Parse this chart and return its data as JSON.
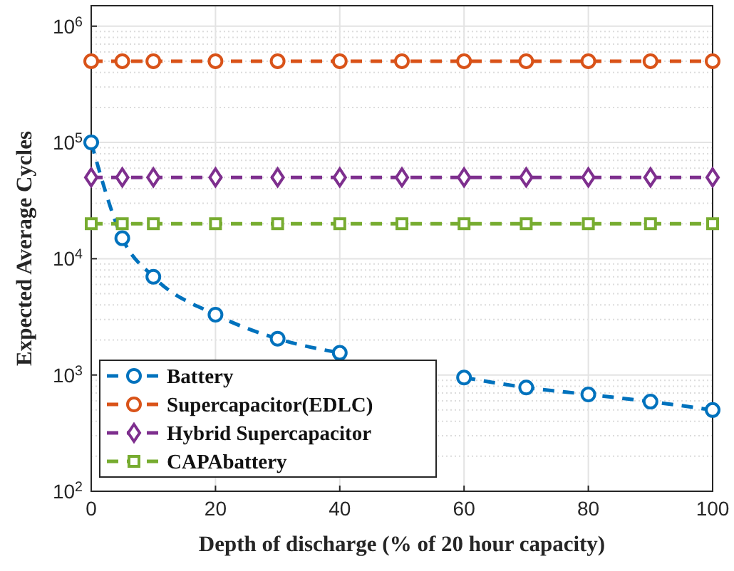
{
  "chart_data": {
    "type": "line",
    "xlabel": "Depth of discharge (% of 20 hour capacity)",
    "ylabel": "Expected Average Cycles",
    "x": [
      0,
      5,
      10,
      20,
      30,
      40,
      50,
      60,
      70,
      80,
      90,
      100
    ],
    "series": [
      {
        "name": "Battery",
        "color": "#0072bd",
        "marker": "circle",
        "values": [
          100000,
          15000,
          7000,
          3300,
          2050,
          1550,
          null,
          950,
          780,
          680,
          590,
          500
        ]
      },
      {
        "name": "Supercapacitor(EDLC)",
        "color": "#d95319",
        "marker": "circle",
        "values": [
          500000,
          500000,
          500000,
          500000,
          500000,
          500000,
          500000,
          500000,
          500000,
          500000,
          500000,
          500000
        ]
      },
      {
        "name": "Hybrid Supercapacitor",
        "color": "#7e2f8e",
        "marker": "diamond",
        "values": [
          50000,
          50000,
          50000,
          50000,
          50000,
          50000,
          50000,
          50000,
          50000,
          50000,
          50000,
          50000
        ]
      },
      {
        "name": "CAPAbattery",
        "color": "#77ac30",
        "marker": "square",
        "values": [
          20000,
          20000,
          20000,
          20000,
          20000,
          20000,
          20000,
          20000,
          20000,
          20000,
          20000,
          20000
        ]
      }
    ],
    "xlim": [
      0,
      100
    ],
    "xticks": [
      0,
      20,
      40,
      60,
      80,
      100
    ],
    "ylim": [
      100,
      1500000
    ],
    "yticks": [
      {
        "value": 100,
        "label": "10$^{2}$"
      },
      {
        "value": 1000,
        "label": "10$^{3}$"
      },
      {
        "value": 10000,
        "label": "10$^{4}$"
      },
      {
        "value": 100000,
        "label": "10$^{5}$"
      },
      {
        "value": 1000000,
        "label": "10$^{6}$"
      }
    ],
    "log": "y",
    "grid": true,
    "legend": "bottom left",
    "line_style": "dashed"
  }
}
